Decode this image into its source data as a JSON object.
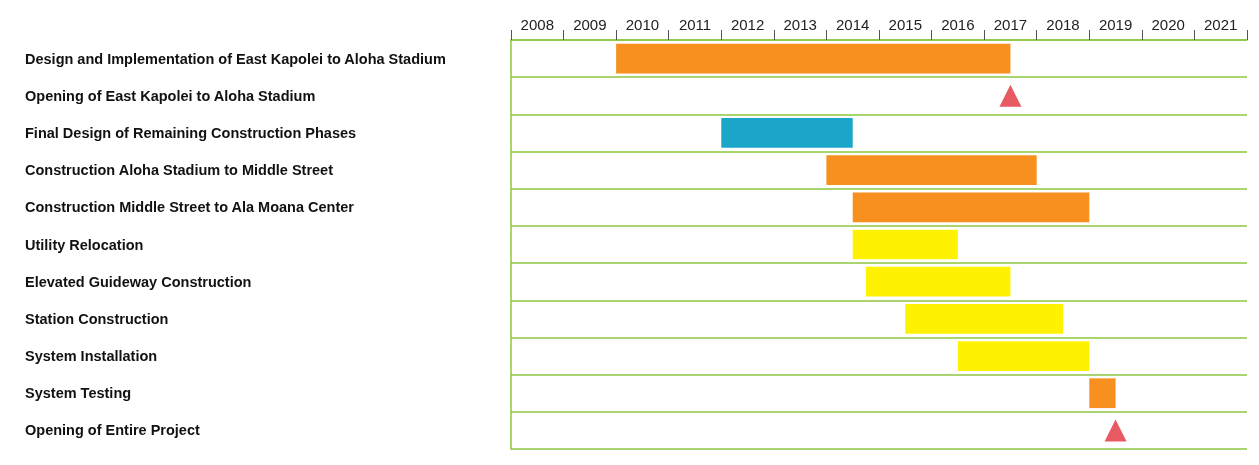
{
  "chart_data": {
    "type": "bar",
    "orientation": "horizontal",
    "categories": [
      "Design and Implementation of East Kapolei to Aloha Stadium",
      "Opening of East Kapolei to Aloha Stadium",
      "Final Design of Remaining Construction Phases",
      "Construction Aloha Stadium to Middle Street",
      "Construction Middle Street to Ala Moana Center",
      "Utility Relocation",
      "Elevated Guideway Construction",
      "Station Construction",
      "System Installation",
      "System Testing",
      "Opening of Entire Project"
    ],
    "series": [
      {
        "base": [
          2010,
          null,
          2012,
          2014,
          2014.5,
          2014.5,
          2014.75,
          2015.5,
          2016.5,
          2019,
          null
        ],
        "values": [
          7.5,
          null,
          2.5,
          4,
          4.5,
          2,
          2.75,
          3,
          2.5,
          0.5,
          null
        ],
        "colors": [
          "#f7901e",
          null,
          "#1ba6c9",
          "#f7901e",
          "#f7901e",
          "#fff200",
          "#fff200",
          "#fff200",
          "#fff200",
          "#f7901e",
          null
        ]
      },
      {
        "type": "scatter",
        "values": [
          null,
          2017.5,
          null,
          null,
          null,
          null,
          null,
          null,
          null,
          null,
          2019.5
        ],
        "color": "#e1313a"
      }
    ],
    "marker": "triangle",
    "xlim": [
      2008,
      2022
    ],
    "xticks": [
      {
        "value": 2008,
        "label": null
      },
      {
        "value": 2008.5,
        "label": "2008"
      },
      {
        "value": 2009,
        "label": null
      },
      {
        "value": 2009.5,
        "label": "2009"
      },
      {
        "value": 2010,
        "label": null
      },
      {
        "value": 2010.5,
        "label": "2010"
      },
      {
        "value": 2011,
        "label": null
      },
      {
        "value": 2011.5,
        "label": "2011"
      },
      {
        "value": 2012,
        "label": null
      },
      {
        "value": 2012.5,
        "label": "2012"
      },
      {
        "value": 2013,
        "label": null
      },
      {
        "value": 2013.5,
        "label": "2013"
      },
      {
        "value": 2014,
        "label": null
      },
      {
        "value": 2014.5,
        "label": "2014"
      },
      {
        "value": 2015,
        "label": null
      },
      {
        "value": 2015.5,
        "label": "2015"
      },
      {
        "value": 2016,
        "label": null
      },
      {
        "value": 2016.5,
        "label": "2016"
      },
      {
        "value": 2017,
        "label": null
      },
      {
        "value": 2017.5,
        "label": "2017"
      },
      {
        "value": 2018,
        "label": null
      },
      {
        "value": 2018.5,
        "label": "2018"
      },
      {
        "value": 2019,
        "label": null
      },
      {
        "value": 2019.5,
        "label": "2019"
      },
      {
        "value": 2020,
        "label": null
      },
      {
        "value": 2020.5,
        "label": "2020"
      },
      {
        "value": 2021,
        "label": null
      },
      {
        "value": 2021.5,
        "label": "2021"
      },
      {
        "value": 2022,
        "label": null
      }
    ],
    "grid": "y"
  }
}
